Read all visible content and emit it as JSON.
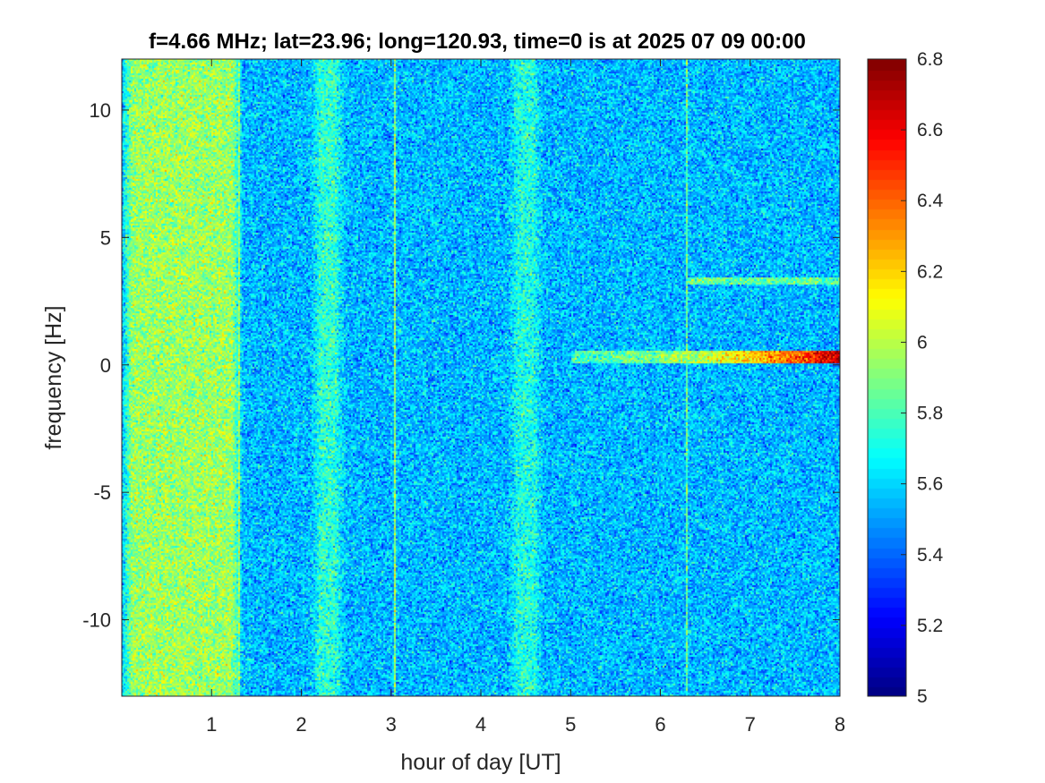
{
  "chart_data": {
    "type": "heatmap",
    "title": "f=4.66 MHz;  lat=23.96; long=120.93, time=0 is at 2025 07 09 00:00",
    "xlabel": "hour of day [UT]",
    "ylabel": "frequency [Hz]",
    "xlim": [
      0,
      8
    ],
    "ylim": [
      -13,
      12
    ],
    "xticks": [
      1,
      2,
      3,
      4,
      5,
      6,
      7,
      8
    ],
    "xtick_labels": [
      "1",
      "2",
      "3",
      "4",
      "5",
      "6",
      "7",
      "8"
    ],
    "yticks": [
      -10,
      -5,
      0,
      5,
      10
    ],
    "ytick_labels": [
      "-10",
      "-5",
      "0",
      "5",
      "10"
    ],
    "colorbar": {
      "clim": [
        5,
        6.8
      ],
      "ticks": [
        5,
        5.2,
        5.4,
        5.6,
        5.8,
        6,
        6.2,
        6.4,
        6.6,
        6.8
      ],
      "tick_labels": [
        "5",
        "5.2",
        "5.4",
        "5.6",
        "5.8",
        "6",
        "6.2",
        "6.4",
        "6.6",
        "6.8"
      ],
      "colormap": "jet"
    },
    "grid": false,
    "background_level": 5.55,
    "features": [
      {
        "kind": "broadband_band",
        "x_range": [
          0,
          1.35
        ],
        "level": 5.95
      },
      {
        "kind": "broadband_band",
        "x_range": [
          2.1,
          2.5
        ],
        "level": 5.75
      },
      {
        "kind": "broadband_band",
        "x_range": [
          4.3,
          4.7
        ],
        "level": 5.72
      },
      {
        "kind": "vertical_line",
        "x": 1.3,
        "level": 5.95
      },
      {
        "kind": "vertical_line",
        "x": 3.05,
        "level": 5.95
      },
      {
        "kind": "vertical_line",
        "x": 6.3,
        "level": 5.85
      },
      {
        "kind": "doppler_trace",
        "x_range": [
          5.0,
          8.0
        ],
        "y": 0.3,
        "level_start": 5.8,
        "level_end": 6.7
      },
      {
        "kind": "weak_trace",
        "x_range": [
          6.3,
          8.0
        ],
        "y": 3.3,
        "level": 5.85
      }
    ]
  }
}
